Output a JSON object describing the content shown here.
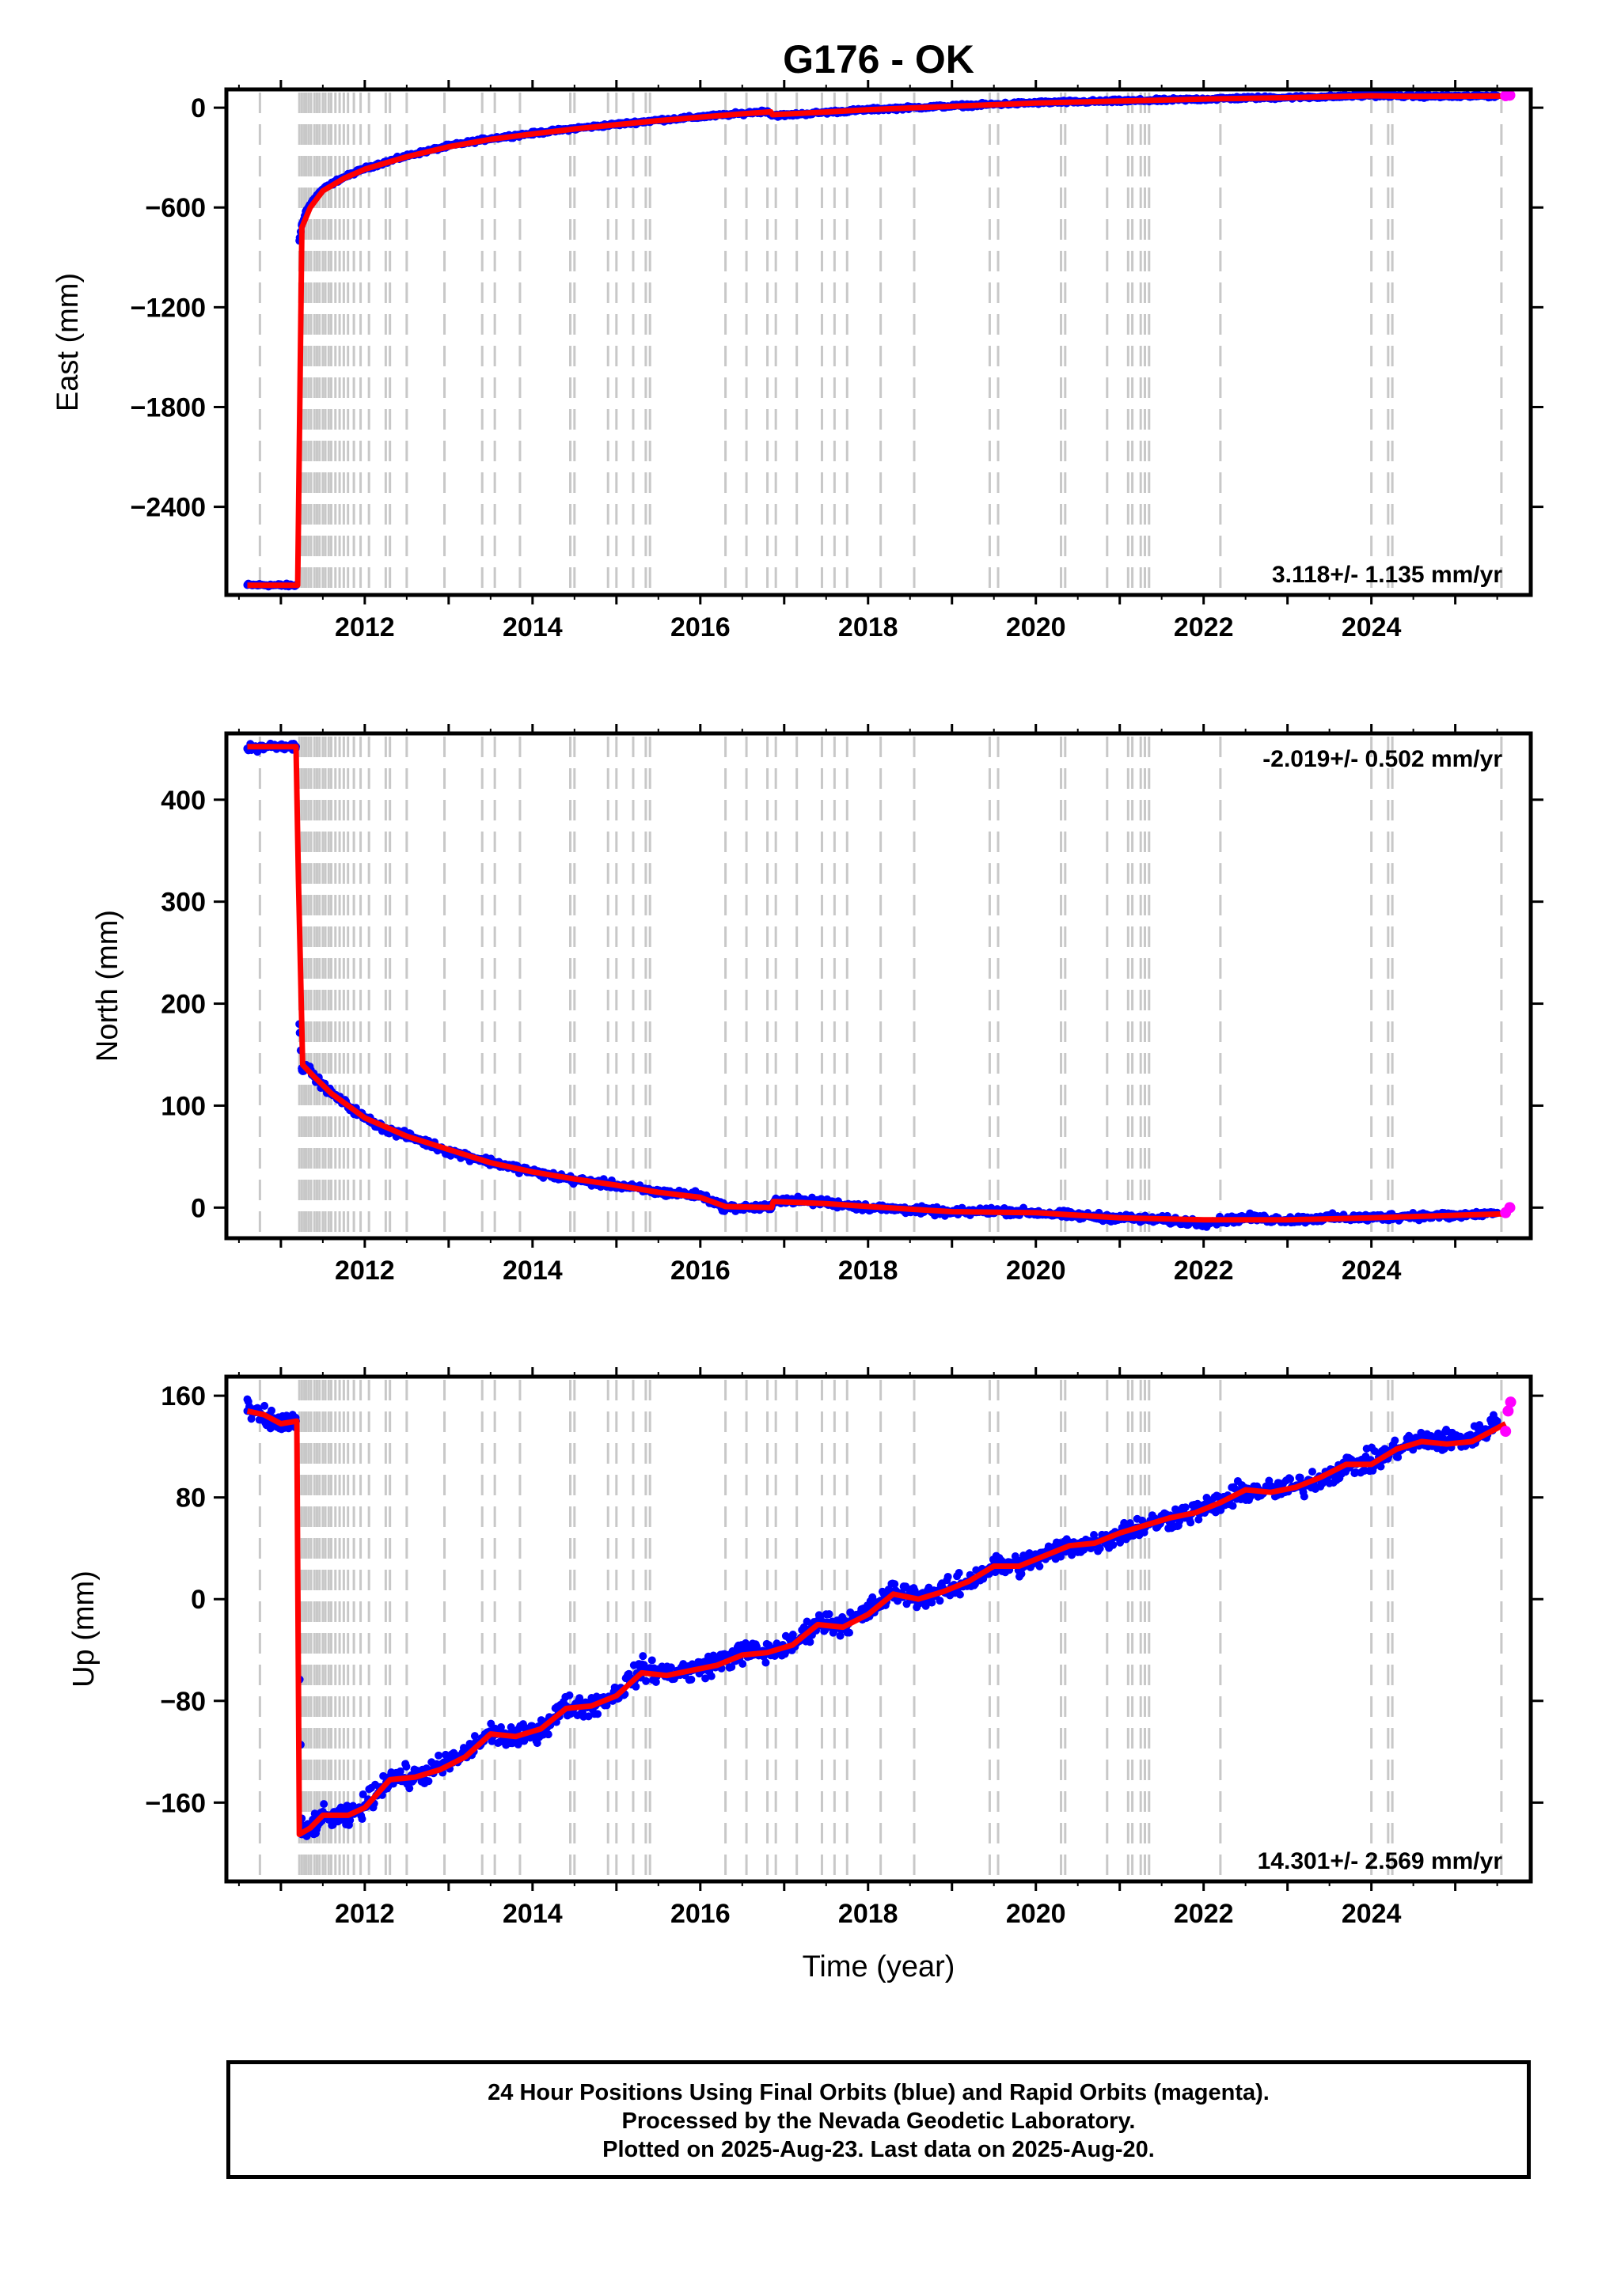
{
  "chart_data": [
    {
      "type": "scatter",
      "title": "G176 - OK",
      "ylabel": "East (mm)",
      "xlabel": "",
      "xlim": [
        2010.35,
        2025.9
      ],
      "ylim": [
        -2930,
        110
      ],
      "xticks": [
        2012,
        2014,
        2016,
        2018,
        2020,
        2022,
        2024
      ],
      "yticks": [
        0,
        -600,
        -1200,
        -1800,
        -2400
      ],
      "ytick_labels": [
        "0",
        "−600",
        "−1200",
        "−1800",
        "−2400"
      ],
      "rate_label": "3.118+/- 1.135 mm/yr",
      "rate_position": "bottom-right",
      "grid": false,
      "series": [
        {
          "name": "Final Orbits (blue)",
          "color": "#0000ff",
          "x": [
            2010.6,
            2010.8,
            2011.0,
            2011.18,
            2011.22,
            2011.25,
            2011.3,
            2011.4,
            2011.5,
            2011.7,
            2012.0,
            2012.5,
            2013.0,
            2013.5,
            2014.0,
            2014.5,
            2015.0,
            2015.5,
            2016.0,
            2016.5,
            2016.8,
            2016.85,
            2017.0,
            2017.5,
            2018.0,
            2018.5,
            2019.0,
            2019.5,
            2020.0,
            2020.5,
            2021.0,
            2021.5,
            2022.0,
            2022.5,
            2023.0,
            2023.5,
            2024.0,
            2024.5,
            2025.0,
            2025.5
          ],
          "values": [
            -2870,
            -2870,
            -2872,
            -2872,
            -800,
            -700,
            -620,
            -545,
            -490,
            -430,
            -365,
            -290,
            -230,
            -185,
            -155,
            -125,
            -100,
            -75,
            -55,
            -35,
            -20,
            -45,
            -45,
            -28,
            -12,
            0,
            10,
            20,
            30,
            35,
            40,
            45,
            52,
            58,
            62,
            66,
            75,
            70,
            68,
            72
          ]
        },
        {
          "name": "Rapid Orbits (magenta)",
          "color": "#ff00ff",
          "x": [
            2025.6,
            2025.65
          ],
          "values": [
            72,
            75
          ]
        },
        {
          "name": "model",
          "color": "#ff0000",
          "x": [
            2010.6,
            2011.18,
            2011.2,
            2011.25,
            2011.35,
            2011.5,
            2011.75,
            2012.0,
            2012.5,
            2013.0,
            2013.5,
            2014.0,
            2014.5,
            2015.0,
            2015.5,
            2016.0,
            2016.5,
            2016.84,
            2016.86,
            2017.5,
            2018.0,
            2019.0,
            2020.0,
            2021.0,
            2022.0,
            2023.0,
            2024.0,
            2024.5,
            2025.6
          ],
          "values": [
            -2872,
            -2872,
            -2872,
            -720,
            -600,
            -500,
            -425,
            -370,
            -295,
            -235,
            -190,
            -158,
            -128,
            -102,
            -78,
            -57,
            -37,
            -25,
            -42,
            -26,
            -12,
            8,
            28,
            40,
            52,
            60,
            72,
            68,
            70
          ]
        }
      ]
    },
    {
      "type": "scatter",
      "ylabel": "North (mm)",
      "xlabel": "",
      "xlim": [
        2010.35,
        2025.9
      ],
      "ylim": [
        -30,
        465
      ],
      "xticks": [
        2012,
        2014,
        2016,
        2018,
        2020,
        2022,
        2024
      ],
      "yticks": [
        0,
        100,
        200,
        300,
        400
      ],
      "rate_label": "-2.019+/- 0.502 mm/yr",
      "rate_position": "top-right",
      "grid": false,
      "series": [
        {
          "name": "Final Orbits (blue)",
          "color": "#0000ff",
          "x": [
            2010.6,
            2010.8,
            2011.0,
            2011.18,
            2011.22,
            2011.25,
            2011.3,
            2011.4,
            2011.6,
            2011.8,
            2012.0,
            2012.3,
            2012.6,
            2013.0,
            2013.5,
            2014.0,
            2014.5,
            2015.0,
            2015.5,
            2016.0,
            2016.3,
            2016.6,
            2016.85,
            2016.9,
            2017.5,
            2018.0,
            2018.5,
            2019.0,
            2019.5,
            2020.0,
            2020.5,
            2021.0,
            2021.5,
            2022.0,
            2022.5,
            2023.0,
            2023.5,
            2024.0,
            2024.5,
            2025.0,
            2025.5
          ],
          "values": [
            450,
            452,
            453,
            452,
            180,
            135,
            140,
            128,
            112,
            100,
            88,
            75,
            68,
            55,
            45,
            35,
            27,
            22,
            15,
            12,
            0,
            0,
            0,
            8,
            5,
            0,
            -2,
            -5,
            -3,
            -5,
            -8,
            -10,
            -12,
            -15,
            -10,
            -12,
            -10,
            -10,
            -8,
            -8,
            -5
          ]
        },
        {
          "name": "Rapid Orbits (magenta)",
          "color": "#ff00ff",
          "x": [
            2025.6,
            2025.65
          ],
          "values": [
            -5,
            0
          ]
        },
        {
          "name": "model",
          "color": "#ff0000",
          "x": [
            2010.6,
            2011.18,
            2011.21,
            2011.26,
            2011.4,
            2011.6,
            2012.0,
            2012.5,
            2013.0,
            2013.5,
            2014.0,
            2014.5,
            2015.0,
            2015.5,
            2016.0,
            2016.3,
            2016.85,
            2016.87,
            2017.5,
            2018.0,
            2019.0,
            2020.0,
            2021.0,
            2022.0,
            2023.0,
            2024.0,
            2025.6
          ],
          "values": [
            452,
            452,
            320,
            140,
            128,
            112,
            88,
            70,
            57,
            44,
            35,
            28,
            22,
            15,
            10,
            1,
            0,
            6,
            4,
            1,
            -4,
            -5,
            -10,
            -12,
            -12,
            -10,
            -6
          ]
        }
      ]
    },
    {
      "type": "scatter",
      "ylabel": "Up (mm)",
      "xlabel": "Time (year)",
      "xlim": [
        2010.35,
        2025.9
      ],
      "ylim": [
        -222,
        175
      ],
      "xticks": [
        2012,
        2014,
        2016,
        2018,
        2020,
        2022,
        2024
      ],
      "yticks": [
        160,
        80,
        0,
        -80,
        -160
      ],
      "ytick_labels": [
        "160",
        "80",
        "0",
        "−80",
        "−160"
      ],
      "rate_label": "14.301+/- 2.569 mm/yr",
      "rate_position": "bottom-right",
      "grid": false,
      "series": [
        {
          "name": "Final Orbits (blue)",
          "color": "#0000ff",
          "x": [
            2010.6,
            2010.8,
            2011.0,
            2011.18,
            2011.25,
            2011.5,
            2011.8,
            2012.0,
            2012.3,
            2012.6,
            2012.9,
            2013.2,
            2013.5,
            2013.8,
            2014.1,
            2014.4,
            2014.7,
            2015.0,
            2015.3,
            2015.6,
            2015.9,
            2016.2,
            2016.5,
            2016.8,
            2017.1,
            2017.4,
            2017.7,
            2018.0,
            2018.3,
            2018.6,
            2018.9,
            2019.2,
            2019.5,
            2019.8,
            2020.1,
            2020.4,
            2020.7,
            2021.0,
            2021.3,
            2021.6,
            2021.9,
            2022.2,
            2022.5,
            2022.8,
            2023.1,
            2023.4,
            2023.7,
            2024.0,
            2024.3,
            2024.6,
            2024.9,
            2025.2,
            2025.5
          ],
          "values": [
            148,
            142,
            138,
            140,
            -185,
            -172,
            -172,
            -162,
            -140,
            -140,
            -132,
            -122,
            -105,
            -110,
            -102,
            -84,
            -84,
            -74,
            -55,
            -58,
            -56,
            -50,
            -42,
            -42,
            -36,
            -18,
            -20,
            -10,
            6,
            2,
            6,
            14,
            26,
            27,
            34,
            42,
            44,
            52,
            58,
            64,
            69,
            76,
            85,
            85,
            88,
            95,
            105,
            108,
            118,
            125,
            125,
            126,
            140
          ]
        },
        {
          "name": "Rapid Orbits (magenta)",
          "color": "#ff00ff",
          "x": [
            2025.6,
            2025.63,
            2025.66
          ],
          "values": [
            132,
            148,
            155
          ]
        },
        {
          "name": "model",
          "color": "#ff0000",
          "x": [
            2010.6,
            2010.8,
            2011.0,
            2011.19,
            2011.22,
            2011.35,
            2011.5,
            2011.8,
            2012.0,
            2012.3,
            2012.6,
            2012.9,
            2013.2,
            2013.5,
            2013.8,
            2014.1,
            2014.4,
            2014.7,
            2015.0,
            2015.3,
            2015.6,
            2015.9,
            2016.2,
            2016.5,
            2016.8,
            2017.1,
            2017.4,
            2017.7,
            2018.0,
            2018.3,
            2018.6,
            2018.9,
            2019.2,
            2019.5,
            2019.8,
            2020.1,
            2020.4,
            2020.7,
            2021.0,
            2021.3,
            2021.6,
            2021.9,
            2022.2,
            2022.5,
            2022.8,
            2023.1,
            2023.4,
            2023.7,
            2024.0,
            2024.3,
            2024.6,
            2024.9,
            2025.2,
            2025.6
          ],
          "values": [
            148,
            145,
            138,
            140,
            -185,
            -180,
            -170,
            -170,
            -164,
            -142,
            -140,
            -134,
            -124,
            -106,
            -108,
            -102,
            -86,
            -84,
            -76,
            -58,
            -60,
            -56,
            -52,
            -44,
            -42,
            -36,
            -20,
            -22,
            -12,
            4,
            0,
            6,
            14,
            26,
            26,
            34,
            42,
            44,
            52,
            58,
            64,
            68,
            76,
            86,
            84,
            88,
            96,
            106,
            106,
            118,
            124,
            122,
            124,
            138
          ]
        }
      ]
    }
  ],
  "event_lines": [
    2010.75,
    2011.22,
    2011.25,
    2011.28,
    2011.3,
    2011.33,
    2011.36,
    2011.4,
    2011.43,
    2011.46,
    2011.5,
    2011.53,
    2011.57,
    2011.6,
    2011.65,
    2011.7,
    2011.75,
    2011.8,
    2011.87,
    2011.95,
    2012.05,
    2012.25,
    2012.3,
    2012.5,
    2012.95,
    2013.4,
    2013.55,
    2013.85,
    2014.45,
    2014.5,
    2014.9,
    2015.0,
    2015.2,
    2015.35,
    2015.4,
    2016.3,
    2016.55,
    2016.8,
    2016.9,
    2017.15,
    2017.45,
    2017.6,
    2017.75,
    2018.15,
    2018.55,
    2019.45,
    2019.55,
    2020.3,
    2020.35,
    2020.85,
    2021.1,
    2021.15,
    2021.25,
    2021.3,
    2021.35,
    2022.2,
    2024.0,
    2024.2,
    2024.25,
    2025.55
  ],
  "caption": {
    "line1": "24 Hour Positions Using Final Orbits (blue) and Rapid Orbits (magenta).",
    "line2": "Processed by the Nevada Geodetic Laboratory.",
    "line3": "Plotted on 2025-Aug-23. Last data on 2025-Aug-20."
  }
}
